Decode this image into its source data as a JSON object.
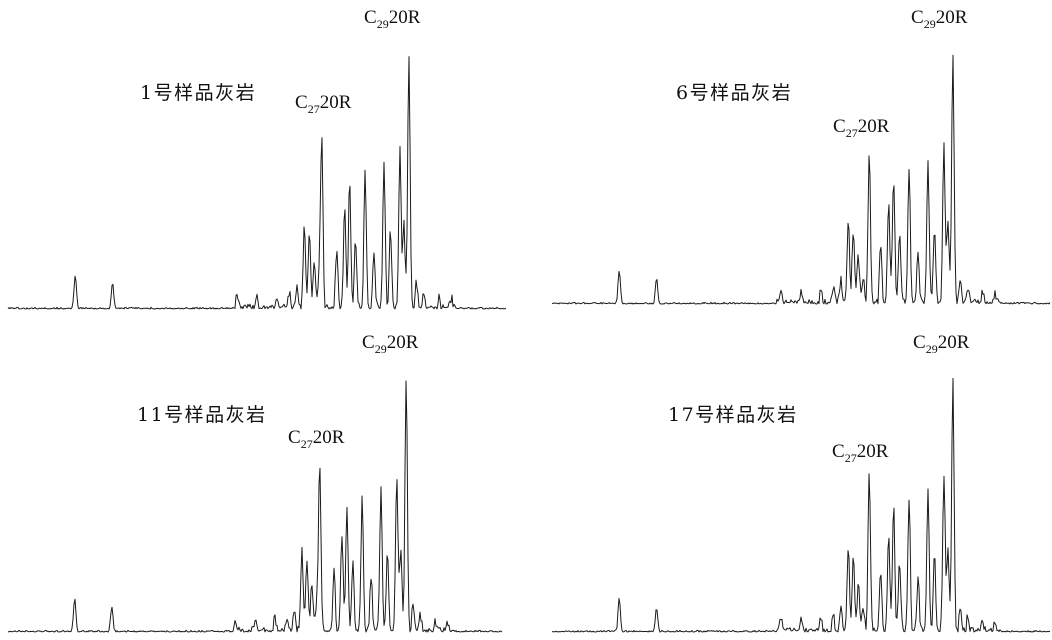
{
  "chart_data": [
    {
      "type": "line",
      "title": "1号样品灰岩",
      "peaks": [
        {
          "label": "C",
          "sub": "27",
          "suffix": "20R",
          "x": 0.63,
          "y": 0.61
        },
        {
          "label": "C",
          "sub": "29",
          "suffix": "20R",
          "x": 0.805,
          "y": 0.905
        }
      ]
    },
    {
      "type": "line",
      "title": "6号样品灰岩",
      "peaks": [
        {
          "label": "C",
          "sub": "27",
          "suffix": "20R",
          "x": 0.637,
          "y": 0.55
        },
        {
          "label": "C",
          "sub": "29",
          "suffix": "20R",
          "x": 0.805,
          "y": 0.905
        }
      ]
    },
    {
      "type": "line",
      "title": "11号样品灰岩",
      "peaks": [
        {
          "label": "C",
          "sub": "27",
          "suffix": "20R",
          "x": 0.631,
          "y": 0.61
        },
        {
          "label": "C",
          "sub": "29",
          "suffix": "20R",
          "x": 0.806,
          "y": 0.91
        }
      ]
    },
    {
      "type": "line",
      "title": "17号样品灰岩",
      "peaks": [
        {
          "label": "C",
          "sub": "27",
          "suffix": "20R",
          "x": 0.637,
          "y": 0.57
        },
        {
          "label": "C",
          "sub": "29",
          "suffix": "20R",
          "x": 0.805,
          "y": 0.91
        }
      ]
    }
  ]
}
